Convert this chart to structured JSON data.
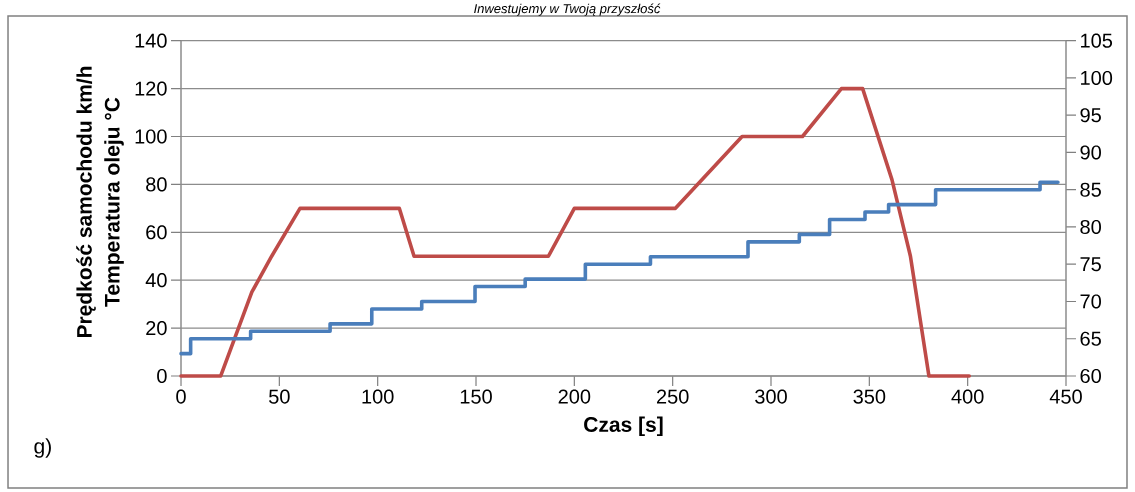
{
  "chart_data": {
    "type": "line",
    "xlabel": "Czas [s]",
    "ylabel": "Prędkość samochodu km/h",
    "annotations": [
      "Inwestujemy w Twoją przyszłość",
      "g)",
      "Temperatura oleju °C"
    ],
    "xlim": [
      0,
      450
    ],
    "xticks": [
      0,
      50,
      100,
      150,
      200,
      250,
      300,
      350,
      400,
      450
    ],
    "ylim": [
      0,
      140
    ],
    "yticks": [
      0,
      20,
      40,
      60,
      80,
      100,
      120,
      140
    ],
    "y2lim": [
      60,
      105
    ],
    "y2ticks": [
      60,
      65,
      70,
      75,
      80,
      85,
      90,
      95,
      100,
      105
    ],
    "grid": "y",
    "line_style": "solid",
    "marker": "none",
    "series": [
      {
        "color": "#be4b48",
        "x": [
          0,
          20.2,
          36,
          46.1,
          60.5,
          111,
          118.5,
          186.8,
          200,
          251.4,
          285.3,
          316,
          335.8,
          346.6,
          361.5,
          370.9,
          380.3,
          400.8
        ],
        "values": [
          0,
          0,
          35,
          50,
          70,
          70,
          50,
          50,
          70,
          70,
          100,
          100,
          120,
          120,
          82,
          50,
          0,
          0
        ]
      },
      {
        "type": "step",
        "axis": "y2",
        "color": "#4a7ebb",
        "x": [
          0,
          4.9,
          35.4,
          75.8,
          97,
          122.4,
          149.5,
          175,
          205.6,
          238.7,
          288.3,
          314.4,
          329.8,
          347.8,
          359.8,
          383.7,
          436.8,
          445.9
        ],
        "values": [
          63,
          65,
          66,
          67,
          69,
          70,
          72,
          73,
          75,
          76,
          78,
          79,
          81,
          82,
          83,
          85,
          86,
          86
        ]
      }
    ]
  }
}
